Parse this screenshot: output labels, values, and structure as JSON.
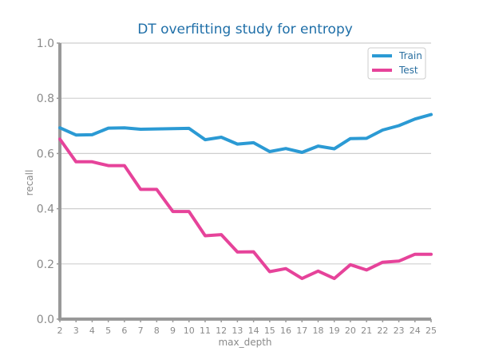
{
  "chart_data": {
    "type": "line",
    "title": "DT overfitting study for entropy",
    "xlabel": "max_depth",
    "ylabel": "recall",
    "x": [
      2,
      3,
      4,
      5,
      6,
      7,
      8,
      9,
      10,
      11,
      12,
      13,
      14,
      15,
      16,
      17,
      18,
      19,
      20,
      21,
      22,
      23,
      24,
      25
    ],
    "xlim": [
      2,
      25
    ],
    "ylim": [
      0.0,
      1.0
    ],
    "yticks": [
      "0.0",
      "0.2",
      "0.4",
      "0.6",
      "0.8",
      "1.0"
    ],
    "grid": true,
    "legend_position": "top-right",
    "series": [
      {
        "name": "Train",
        "color": "#2b9ad4",
        "values": [
          0.693,
          0.667,
          0.668,
          0.692,
          0.693,
          0.688,
          0.689,
          0.69,
          0.691,
          0.65,
          0.659,
          0.634,
          0.639,
          0.607,
          0.618,
          0.604,
          0.627,
          0.617,
          0.654,
          0.655,
          0.685,
          0.701,
          0.725,
          0.741
        ]
      },
      {
        "name": "Test",
        "color": "#e6439a",
        "values": [
          0.652,
          0.57,
          0.57,
          0.556,
          0.556,
          0.47,
          0.47,
          0.39,
          0.39,
          0.302,
          0.306,
          0.243,
          0.244,
          0.172,
          0.183,
          0.147,
          0.174,
          0.147,
          0.197,
          0.178,
          0.206,
          0.21,
          0.235,
          0.235
        ]
      }
    ]
  }
}
